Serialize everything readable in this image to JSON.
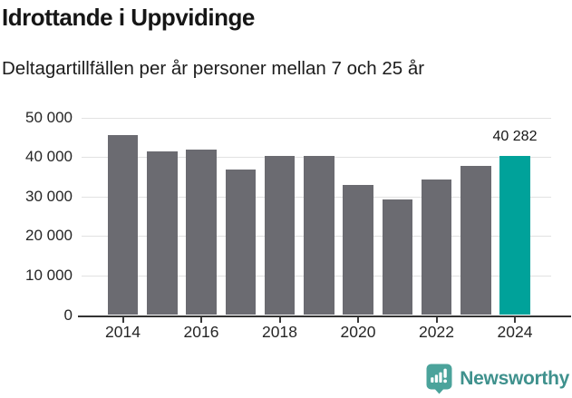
{
  "header": {
    "title": "Idrottande i Uppvidinge",
    "subtitle": "Deltagartillfällen per år personer mellan 7 och 25 år"
  },
  "chart_data": {
    "type": "bar",
    "title": "Idrottande i Uppvidinge",
    "subtitle": "Deltagartillfällen per år personer mellan 7 och 25 år",
    "xlabel": "",
    "ylabel": "",
    "x": [
      "2014",
      "2015",
      "2016",
      "2017",
      "2018",
      "2019",
      "2020",
      "2021",
      "2022",
      "2023",
      "2024"
    ],
    "values": [
      45500,
      41400,
      41900,
      36900,
      40300,
      40300,
      33000,
      29200,
      34300,
      37700,
      40282
    ],
    "highlight_index": 10,
    "highlight_value_label": "40 282",
    "ylim": [
      0,
      50000
    ],
    "y_ticks": [
      0,
      10000,
      20000,
      30000,
      40000,
      50000
    ],
    "y_tick_labels": [
      "0",
      "10 000",
      "20 000",
      "30 000",
      "40 000",
      "50 000"
    ],
    "x_tick_years": [
      "2014",
      "2016",
      "2018",
      "2020",
      "2022",
      "2024"
    ],
    "grid": true,
    "legend": false,
    "colors": {
      "bar": "#6b6b71",
      "highlight": "#00a29a",
      "gridline": "#e2e2e2",
      "axis": "#333333"
    }
  },
  "footer": {
    "brand": "Newsworthy",
    "logo_icon": "newsworthy-chart-speech-bubble-icon"
  }
}
